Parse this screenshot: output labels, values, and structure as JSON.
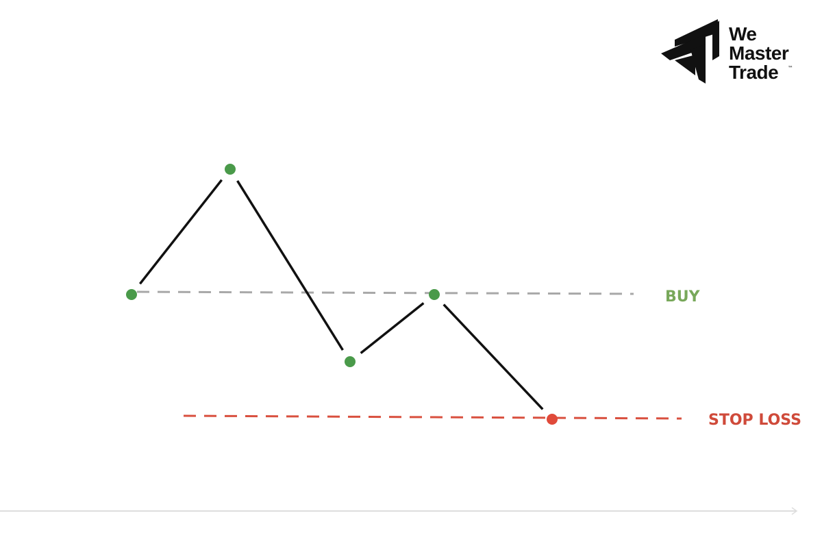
{
  "logo": {
    "lines": [
      "We",
      "Master",
      "Trade"
    ],
    "trademark": "™"
  },
  "labels": {
    "buy": "BUY",
    "stop_loss": "STOP LOSS"
  },
  "colors": {
    "swing_point": "#4a9a4a",
    "stop_point": "#e04a3a",
    "price_line": "#111111",
    "buy_line": "#a8a8a8",
    "buy_label": "#78a85a",
    "stop_line": "#d9503f",
    "stop_label": "#cf4a3a",
    "axis": "#dddddd"
  }
}
